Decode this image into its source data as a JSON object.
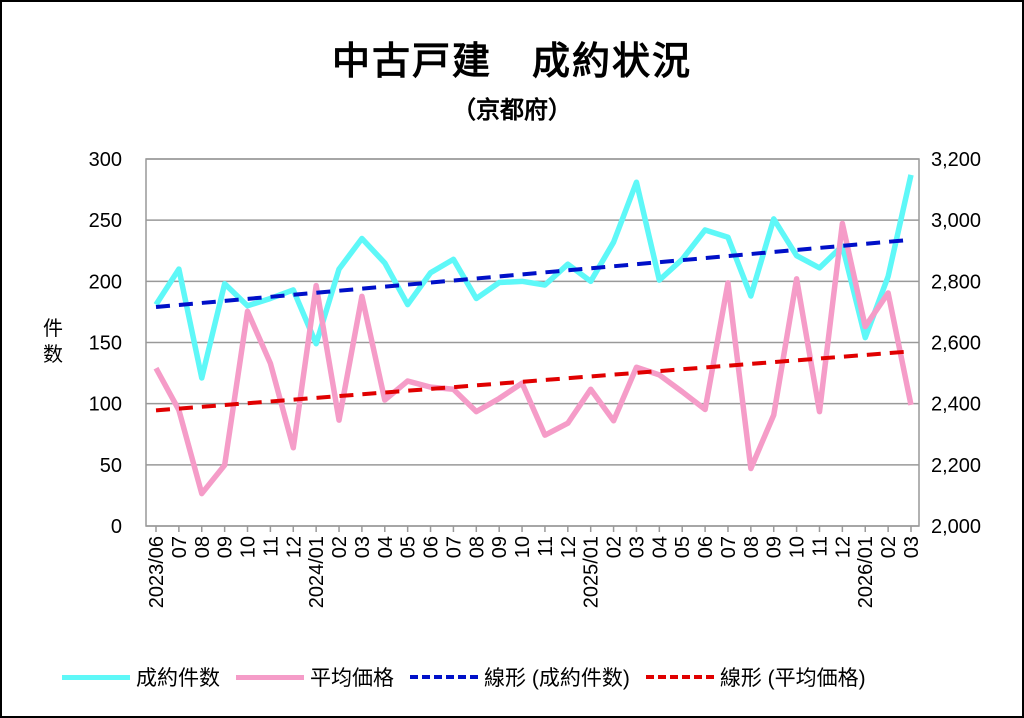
{
  "chart_data": {
    "type": "line",
    "title": "中古戸建　成約状況",
    "subtitle": "（京都府）",
    "ylabel": "件数",
    "ylim": [
      0,
      300
    ],
    "y_ticks": [
      "0",
      "50",
      "100",
      "150",
      "200",
      "250",
      "300"
    ],
    "y2lim": [
      2000,
      3200
    ],
    "y2_ticks": [
      "2,000",
      "2,200",
      "2,400",
      "2,600",
      "2,800",
      "3,000",
      "3,200"
    ],
    "grid": true,
    "legend_position": "bottom",
    "categories": [
      "2023/06",
      "07",
      "08",
      "09",
      "10",
      "11",
      "12",
      "2024/01",
      "02",
      "03",
      "04",
      "05",
      "06",
      "07",
      "08",
      "09",
      "10",
      "11",
      "12",
      "2025/01",
      "02",
      "03",
      "04",
      "05",
      "06",
      "07",
      "08",
      "09",
      "10",
      "11",
      "12",
      "2026/01",
      "02",
      "03"
    ],
    "series": [
      {
        "name": "成約件数",
        "axis": "left",
        "color": "#5ef8f8",
        "style": "solid",
        "values": [
          181,
          210,
          121,
          198,
          180,
          186,
          193,
          149,
          210,
          235,
          215,
          181,
          207,
          218,
          186,
          199,
          200,
          197,
          214,
          200,
          232,
          281,
          201,
          218,
          242,
          236,
          188,
          251,
          221,
          211,
          229,
          154,
          204,
          287
        ]
      },
      {
        "name": "平均価格",
        "axis": "right",
        "color": "#f59cc8",
        "style": "solid",
        "values": [
          2516,
          2379,
          2106,
          2199,
          2702,
          2532,
          2256,
          2786,
          2346,
          2751,
          2412,
          2474,
          2454,
          2447,
          2374,
          2417,
          2467,
          2297,
          2336,
          2447,
          2344,
          2519,
          2494,
          2439,
          2381,
          2795,
          2188,
          2363,
          2808,
          2374,
          2989,
          2652,
          2762,
          2396
        ]
      },
      {
        "name": "線形 (成約件数)",
        "axis": "left",
        "color": "#0010c8",
        "style": "dashed",
        "values_start_end": [
          179,
          234
        ]
      },
      {
        "name": "線形 (平均価格)",
        "axis": "right",
        "color": "#e00000",
        "style": "dashed",
        "values_start_end": [
          2378,
          2571
        ]
      }
    ]
  }
}
